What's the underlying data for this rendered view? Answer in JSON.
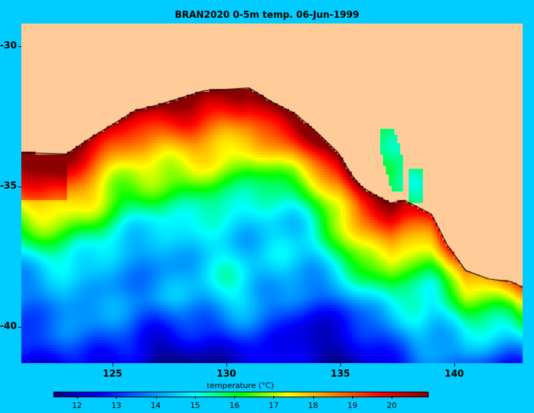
{
  "title": "BRAN2020 0-5m temp. 06-Jun-1999",
  "map": {
    "land_color": "#ffcc99",
    "outside_color": "#00ccff",
    "lon_range": [
      121,
      143
    ],
    "lat_range": [
      -41.3,
      -29.2
    ],
    "lon_ticks": [
      "125",
      "130",
      "135",
      "140"
    ],
    "lat_ticks": [
      "-30",
      "-35",
      "-40"
    ]
  },
  "colorbar": {
    "label": "temperature (°C)",
    "range": [
      11.4,
      20.9
    ],
    "ticks": [
      "12",
      "13",
      "14",
      "15",
      "16",
      "17",
      "18",
      "19",
      "20"
    ],
    "colors": [
      "#00008b",
      "#0000ff",
      "#0080ff",
      "#00ffff",
      "#00ff00",
      "#ffff00",
      "#ff8000",
      "#ff0000",
      "#8b0000"
    ]
  }
}
